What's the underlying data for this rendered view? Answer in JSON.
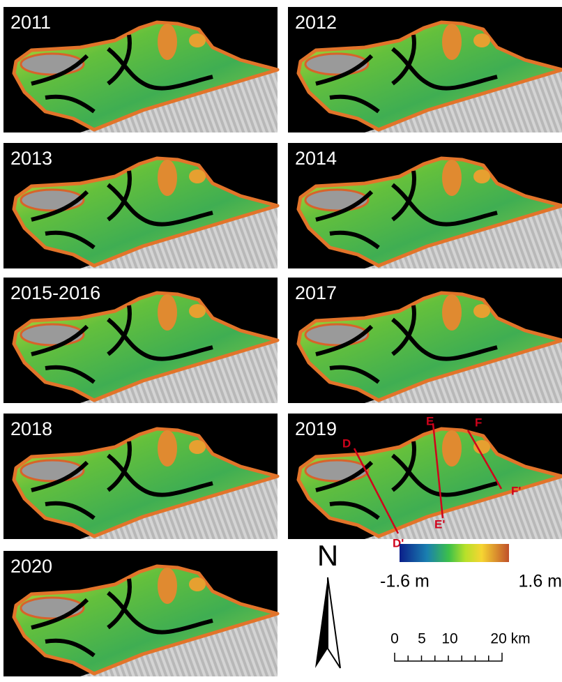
{
  "panels": [
    {
      "label": "2011"
    },
    {
      "label": "2012"
    },
    {
      "label": "2013"
    },
    {
      "label": "2014"
    },
    {
      "label": "2015-2016"
    },
    {
      "label": "2017"
    },
    {
      "label": "2018"
    },
    {
      "label": "2019"
    },
    {
      "label": "2020"
    }
  ],
  "profiles": [
    {
      "start": "D",
      "end": "D'"
    },
    {
      "start": "E",
      "end": "E'"
    },
    {
      "start": "F",
      "end": "F'"
    }
  ],
  "north_arrow": {
    "label": "N"
  },
  "colorbar": {
    "min_label": "-1.6  m",
    "max_label": "1.6  m"
  },
  "scale_bar": {
    "labels": [
      "0",
      "5",
      "10",
      "20 km"
    ]
  }
}
